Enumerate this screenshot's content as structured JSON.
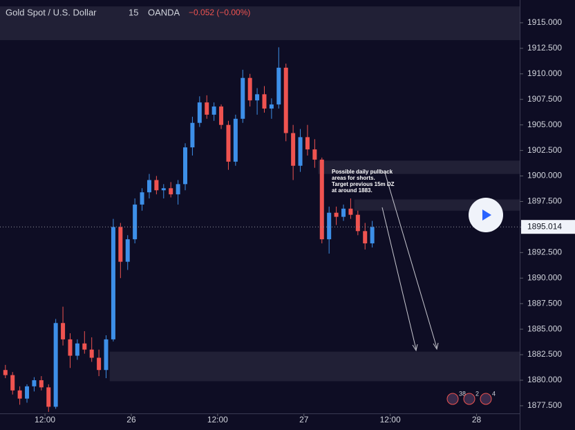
{
  "chart_data": {
    "type": "candlestick",
    "title": "Gold Spot / U.S. Dollar",
    "interval": "15",
    "source": "OANDA",
    "change": "−0.052 (−0.00%)",
    "last_price": 1895.014,
    "up_color": "#3d8fe8",
    "down_color": "#ef5350",
    "xlim": [
      5.75,
      78
    ],
    "xticks": [
      {
        "value": 12,
        "label": "12:00"
      },
      {
        "value": 24,
        "label": "26"
      },
      {
        "value": 36,
        "label": "12:00"
      },
      {
        "value": 48,
        "label": "27"
      },
      {
        "value": 60,
        "label": "12:00"
      },
      {
        "value": 72,
        "label": "28"
      }
    ],
    "ylim": [
      1876.75,
      1917.23
    ],
    "yticks": [
      {
        "value": 1877.5,
        "label": "1877.500"
      },
      {
        "value": 1880,
        "label": "1880.000"
      },
      {
        "value": 1882.5,
        "label": "1882.500"
      },
      {
        "value": 1885,
        "label": "1885.000"
      },
      {
        "value": 1887.5,
        "label": "1887.500"
      },
      {
        "value": 1890,
        "label": "1890.000"
      },
      {
        "value": 1892.5,
        "label": "1892.500"
      },
      {
        "value": 1895,
        "label": "1895.000"
      },
      {
        "value": 1897.5,
        "label": "1897.500"
      },
      {
        "value": 1900,
        "label": "1900.000"
      },
      {
        "value": 1902.5,
        "label": "1902.500"
      },
      {
        "value": 1905,
        "label": "1905.000"
      },
      {
        "value": 1907.5,
        "label": "1907.500"
      },
      {
        "value": 1910,
        "label": "1910.000"
      },
      {
        "value": 1912.5,
        "label": "1912.500"
      },
      {
        "value": 1915,
        "label": "1915.000"
      }
    ],
    "zones": [
      {
        "x0": 5.75,
        "range": [
          1913.3,
          1916.6
        ]
      },
      {
        "x0": 50,
        "range": [
          1900.2,
          1901.5
        ]
      },
      {
        "x0": 55,
        "range": [
          1896.6,
          1897.7
        ]
      },
      {
        "x0": 21,
        "range": [
          1879.9,
          1882.8
        ]
      }
    ],
    "annotation": [
      "Possible daily pullback",
      "areas for shorts.",
      "Target previous 15m DZ",
      "at around 1883."
    ],
    "badges": [
      "38",
      "2",
      "4"
    ],
    "x": [
      6,
      7,
      8,
      9,
      10,
      11,
      12,
      13,
      14,
      15,
      16,
      17,
      18,
      19,
      20,
      21,
      22,
      23,
      24,
      25,
      26,
      27,
      28,
      29,
      30,
      31,
      32,
      33,
      34,
      35,
      36,
      37,
      38,
      39,
      40,
      41,
      42,
      43,
      44,
      45,
      46,
      47,
      48,
      49,
      50,
      51,
      52,
      53,
      54,
      55,
      56,
      57
    ],
    "open": [
      1881.0,
      1880.5,
      1879.0,
      1878.2,
      1879.4,
      1880.0,
      1879.3,
      1877.4,
      1885.6,
      1884.0,
      1882.4,
      1883.6,
      1883.0,
      1882.2,
      1881.0,
      1884.0,
      1895.0,
      1891.6,
      1893.8,
      1897.2,
      1898.4,
      1899.6,
      1898.6,
      1898.8,
      1898.2,
      1899.2,
      1902.8,
      1905.2,
      1907.2,
      1906.0,
      1906.8,
      1905.0,
      1901.4,
      1905.6,
      1909.6,
      1907.4,
      1908.0,
      1906.6,
      1907.0,
      1910.6,
      1904.2,
      1901.0,
      1903.8,
      1902.6,
      1901.6,
      1893.8,
      1896.4,
      1896.0,
      1896.8,
      1896.2,
      1894.6,
      1893.4
    ],
    "high": [
      1881.5,
      1880.8,
      1879.4,
      1879.6,
      1880.3,
      1880.4,
      1879.6,
      1886.0,
      1887.2,
      1884.6,
      1884.0,
      1884.8,
      1884.2,
      1883.0,
      1884.4,
      1895.8,
      1895.4,
      1894.2,
      1897.8,
      1898.8,
      1900.2,
      1900.0,
      1899.2,
      1899.4,
      1899.6,
      1903.2,
      1905.8,
      1907.8,
      1907.9,
      1907.2,
      1907.0,
      1905.4,
      1906.0,
      1910.4,
      1910.0,
      1908.6,
      1908.8,
      1907.6,
      1912.6,
      1911.0,
      1905.0,
      1904.6,
      1905.0,
      1903.6,
      1901.8,
      1897.0,
      1897.0,
      1897.2,
      1897.8,
      1896.6,
      1895.4,
      1895.6
    ],
    "low": [
      1880.2,
      1878.6,
      1877.6,
      1877.8,
      1878.9,
      1879.0,
      1876.9,
      1877.2,
      1883.4,
      1881.2,
      1882.0,
      1882.6,
      1881.8,
      1880.4,
      1880.2,
      1883.8,
      1890.0,
      1890.8,
      1893.4,
      1896.6,
      1897.8,
      1898.2,
      1897.8,
      1897.9,
      1897.2,
      1898.6,
      1902.0,
      1904.8,
      1905.6,
      1905.4,
      1904.6,
      1900.6,
      1901.0,
      1905.2,
      1906.8,
      1906.0,
      1906.2,
      1905.6,
      1906.6,
      1903.4,
      1899.6,
      1900.4,
      1902.0,
      1900.8,
      1893.4,
      1892.4,
      1895.2,
      1895.6,
      1895.8,
      1894.2,
      1892.8,
      1893.0
    ],
    "close": [
      1880.5,
      1879.0,
      1878.2,
      1879.4,
      1880.0,
      1879.3,
      1877.4,
      1885.6,
      1884.0,
      1882.4,
      1883.6,
      1883.0,
      1882.2,
      1881.0,
      1884.0,
      1895.0,
      1891.6,
      1893.8,
      1897.2,
      1898.4,
      1899.6,
      1898.6,
      1898.8,
      1898.2,
      1899.2,
      1902.8,
      1905.2,
      1907.2,
      1906.0,
      1906.8,
      1905.0,
      1901.4,
      1905.6,
      1909.6,
      1907.4,
      1908.0,
      1906.6,
      1907.0,
      1910.6,
      1904.2,
      1901.0,
      1903.8,
      1902.6,
      1901.6,
      1893.8,
      1896.4,
      1896.0,
      1896.8,
      1896.2,
      1894.6,
      1893.4,
      1895.0
    ]
  }
}
